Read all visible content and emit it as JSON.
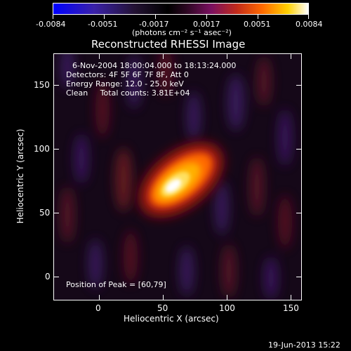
{
  "colorbar": {
    "ticks": [
      "-0.0084",
      "-0.0051",
      "-0.0017",
      "0.0017",
      "0.0051",
      "0.0084"
    ],
    "units": "(photons cm⁻² s⁻¹ asec⁻²)",
    "colors": {
      "min": "#0000ff",
      "mid": "#000000",
      "max": "#ffffff"
    }
  },
  "plot": {
    "title": "Reconstructed RHESSI Image",
    "xlabel": "Heliocentric X (arcsec)",
    "ylabel": "Heliocentric Y (arcsec)",
    "xticks": [
      "0",
      "50",
      "100",
      "150"
    ],
    "yticks": [
      "0",
      "50",
      "100",
      "150"
    ],
    "info_lines": [
      "6-Nov-2004 18:00:04.000 to 18:13:24.000",
      "Detectors: 4F 5F 6F 7F 8F, Att 0",
      "Energy Range: 12.0 - 25.0 keV",
      "Clean     Total counts: 3.81E+04"
    ],
    "peak_label": "Position of Peak = [60,79]"
  },
  "footer": {
    "date": "19-Jun-2013 15:22"
  }
}
